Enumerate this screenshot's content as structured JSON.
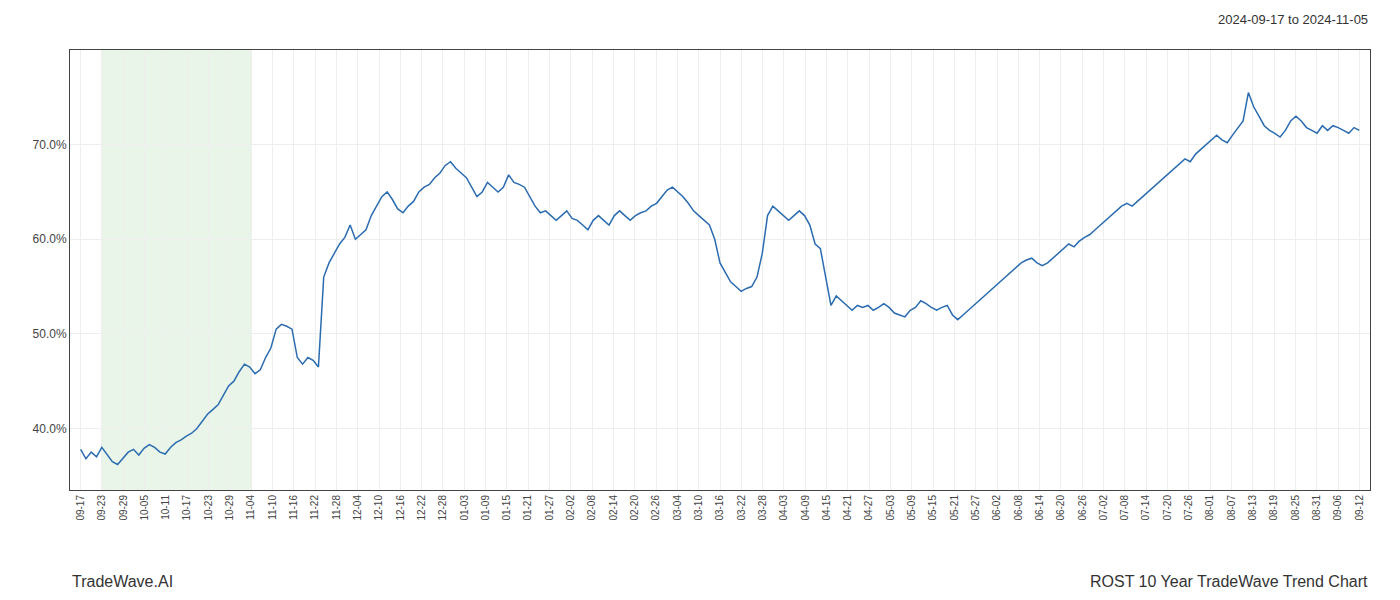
{
  "chart_data": {
    "type": "line",
    "annotations": [
      "2024-09-17 to 2024-11-05",
      "TradeWave.AI",
      "ROST 10 Year TradeWave Trend Chart"
    ],
    "color": "#2b6cb0",
    "grid": true,
    "shade": {
      "x": [
        1,
        8
      ],
      "color": "#d6ecd6"
    },
    "xlim": [
      -0.5,
      60.5
    ],
    "xticks": [
      {
        "value": 0,
        "label": "09-17"
      },
      {
        "value": 1,
        "label": "09-23"
      },
      {
        "value": 2,
        "label": "09-29"
      },
      {
        "value": 3,
        "label": "10-05"
      },
      {
        "value": 4,
        "label": "10-11"
      },
      {
        "value": 5,
        "label": "10-17"
      },
      {
        "value": 6,
        "label": "10-23"
      },
      {
        "value": 7,
        "label": "10-29"
      },
      {
        "value": 8,
        "label": "11-04"
      },
      {
        "value": 9,
        "label": "11-10"
      },
      {
        "value": 10,
        "label": "11-16"
      },
      {
        "value": 11,
        "label": "11-22"
      },
      {
        "value": 12,
        "label": "11-28"
      },
      {
        "value": 13,
        "label": "12-04"
      },
      {
        "value": 14,
        "label": "12-10"
      },
      {
        "value": 15,
        "label": "12-16"
      },
      {
        "value": 16,
        "label": "12-22"
      },
      {
        "value": 17,
        "label": "12-28"
      },
      {
        "value": 18,
        "label": "01-03"
      },
      {
        "value": 19,
        "label": "01-09"
      },
      {
        "value": 20,
        "label": "01-15"
      },
      {
        "value": 21,
        "label": "01-21"
      },
      {
        "value": 22,
        "label": "01-27"
      },
      {
        "value": 23,
        "label": "02-02"
      },
      {
        "value": 24,
        "label": "02-08"
      },
      {
        "value": 25,
        "label": "02-14"
      },
      {
        "value": 26,
        "label": "02-20"
      },
      {
        "value": 27,
        "label": "02-26"
      },
      {
        "value": 28,
        "label": "03-04"
      },
      {
        "value": 29,
        "label": "03-10"
      },
      {
        "value": 30,
        "label": "03-16"
      },
      {
        "value": 31,
        "label": "03-22"
      },
      {
        "value": 32,
        "label": "03-28"
      },
      {
        "value": 33,
        "label": "04-03"
      },
      {
        "value": 34,
        "label": "04-09"
      },
      {
        "value": 35,
        "label": "04-15"
      },
      {
        "value": 36,
        "label": "04-21"
      },
      {
        "value": 37,
        "label": "04-27"
      },
      {
        "value": 38,
        "label": "05-03"
      },
      {
        "value": 39,
        "label": "05-09"
      },
      {
        "value": 40,
        "label": "05-15"
      },
      {
        "value": 41,
        "label": "05-21"
      },
      {
        "value": 42,
        "label": "05-27"
      },
      {
        "value": 43,
        "label": "06-02"
      },
      {
        "value": 44,
        "label": "06-08"
      },
      {
        "value": 45,
        "label": "06-14"
      },
      {
        "value": 46,
        "label": "06-20"
      },
      {
        "value": 47,
        "label": "06-26"
      },
      {
        "value": 48,
        "label": "07-02"
      },
      {
        "value": 49,
        "label": "07-08"
      },
      {
        "value": 50,
        "label": "07-14"
      },
      {
        "value": 51,
        "label": "07-20"
      },
      {
        "value": 52,
        "label": "07-26"
      },
      {
        "value": 53,
        "label": "08-01"
      },
      {
        "value": 54,
        "label": "08-07"
      },
      {
        "value": 55,
        "label": "08-13"
      },
      {
        "value": 56,
        "label": "08-19"
      },
      {
        "value": 57,
        "label": "08-25"
      },
      {
        "value": 58,
        "label": "08-31"
      },
      {
        "value": 59,
        "label": "09-06"
      },
      {
        "value": 60,
        "label": "09-12"
      }
    ],
    "ylim": [
      33.5,
      80.0
    ],
    "yticks": [
      {
        "value": 40.0,
        "label": "40.0%"
      },
      {
        "value": 50.0,
        "label": "50.0%"
      },
      {
        "value": 60.0,
        "label": "60.0%"
      },
      {
        "value": 70.0,
        "label": "70.0%"
      }
    ],
    "values": [
      37.8,
      36.8,
      37.5,
      37.0,
      38.0,
      37.2,
      36.5,
      36.2,
      36.8,
      37.5,
      37.8,
      37.2,
      37.9,
      38.3,
      38.0,
      37.5,
      37.3,
      38.0,
      38.5,
      38.8,
      39.2,
      39.5,
      40.0,
      40.8,
      41.5,
      42.0,
      42.5,
      43.5,
      44.5,
      45.0,
      46.0,
      46.8,
      46.5,
      45.8,
      46.2,
      47.5,
      48.5,
      50.5,
      51.0,
      50.8,
      50.5,
      47.5,
      46.8,
      47.5,
      47.2,
      46.5,
      56.0,
      57.5,
      58.5,
      59.5,
      60.2,
      61.5,
      60.0,
      60.5,
      61.0,
      62.5,
      63.5,
      64.5,
      65.0,
      64.2,
      63.2,
      62.8,
      63.5,
      64.0,
      65.0,
      65.5,
      65.8,
      66.5,
      67.0,
      67.8,
      68.2,
      67.5,
      67.0,
      66.5,
      65.5,
      64.5,
      65.0,
      66.0,
      65.5,
      65.0,
      65.5,
      66.8,
      66.0,
      65.8,
      65.5,
      64.5,
      63.5,
      62.8,
      63.0,
      62.5,
      62.0,
      62.5,
      63.0,
      62.2,
      62.0,
      61.5,
      61.0,
      62.0,
      62.5,
      62.0,
      61.5,
      62.5,
      63.0,
      62.5,
      62.0,
      62.5,
      62.8,
      63.0,
      63.5,
      63.8,
      64.5,
      65.2,
      65.5,
      65.0,
      64.5,
      63.8,
      63.0,
      62.5,
      62.0,
      61.5,
      60.0,
      57.5,
      56.5,
      55.5,
      55.0,
      54.5,
      54.8,
      55.0,
      56.0,
      58.5,
      62.5,
      63.5,
      63.0,
      62.5,
      62.0,
      62.5,
      63.0,
      62.5,
      61.5,
      59.5,
      59.0,
      56.0,
      53.0,
      54.0,
      53.5,
      53.0,
      52.5,
      53.0,
      52.8,
      53.0,
      52.5,
      52.8,
      53.2,
      52.8,
      52.2,
      52.0,
      51.8,
      52.5,
      52.8,
      53.5,
      53.2,
      52.8,
      52.5,
      52.8,
      53.0,
      52.0,
      51.5,
      52.0,
      52.5,
      53.0,
      53.5,
      54.0,
      54.5,
      55.0,
      55.5,
      56.0,
      56.5,
      57.0,
      57.5,
      57.8,
      58.0,
      57.5,
      57.2,
      57.5,
      58.0,
      58.5,
      59.0,
      59.5,
      59.2,
      59.8,
      60.2,
      60.5,
      61.0,
      61.5,
      62.0,
      62.5,
      63.0,
      63.5,
      63.8,
      63.5,
      64.0,
      64.5,
      65.0,
      65.5,
      66.0,
      66.5,
      67.0,
      67.5,
      68.0,
      68.5,
      68.2,
      69.0,
      69.5,
      70.0,
      70.5,
      71.0,
      70.5,
      70.2,
      71.0,
      71.8,
      72.5,
      75.5,
      74.0,
      73.0,
      72.0,
      71.5,
      71.2,
      70.8,
      71.5,
      72.5,
      73.0,
      72.5,
      71.8,
      71.5,
      71.2,
      72.0,
      71.5,
      72.0,
      71.8,
      71.5,
      71.2,
      71.8,
      71.5
    ]
  }
}
